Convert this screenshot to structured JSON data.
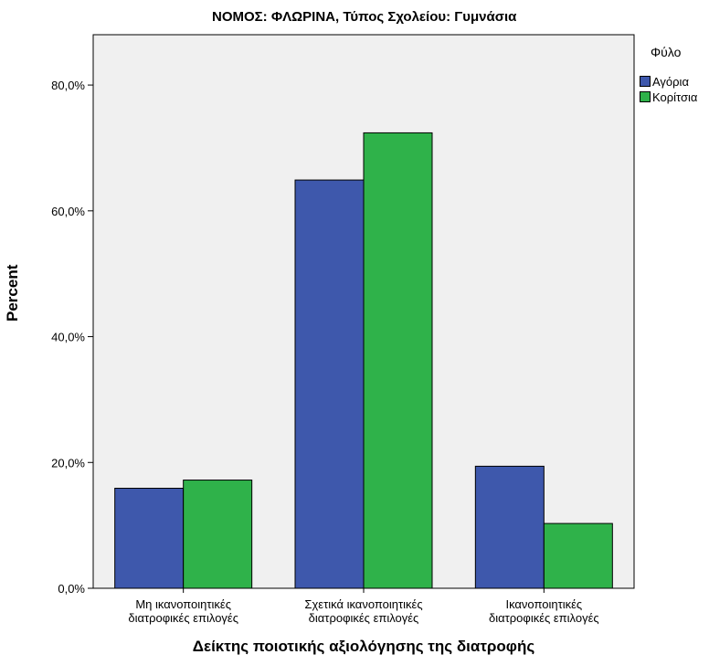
{
  "chart_data": {
    "type": "bar",
    "title": "ΝΟΜΟΣ: ΦΛΩΡΙΝΑ, Τύπος Σχολείου: Γυμνάσια",
    "xlabel": "Δείκτης ποιοτικής αξιολόγησης της διατροφής",
    "ylabel": "Percent",
    "ylim": [
      0,
      88
    ],
    "yticks": [
      0,
      20,
      40,
      60,
      80
    ],
    "ytick_labels": [
      "0,0%",
      "20,0%",
      "40,0%",
      "60,0%",
      "80,0%"
    ],
    "categories": [
      [
        "Μη ικανοποιητικές",
        "διατροφικές επιλογές"
      ],
      [
        "Σχετικά ικανοποιητικές",
        "διατροφικές επιλογές"
      ],
      [
        "Ικανοποιητικές",
        "διατροφικές επιλογές"
      ]
    ],
    "legend_title": "Φύλο",
    "legend_position": "right",
    "grid": false,
    "background": "#f0f0f0",
    "series": [
      {
        "name": "Αγόρια",
        "color": "#3e58ac",
        "values": [
          15.9,
          64.9,
          19.4
        ]
      },
      {
        "name": "Κορίτσια",
        "color": "#2fb24a",
        "values": [
          17.2,
          72.4,
          10.3
        ]
      }
    ]
  }
}
